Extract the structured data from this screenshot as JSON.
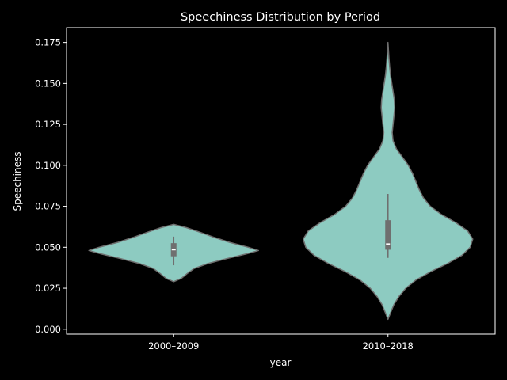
{
  "chart_data": {
    "type": "violin",
    "title": "Speechiness Distribution by Period",
    "xlabel": "year",
    "ylabel": "Speechiness",
    "ylim": [
      -0.003,
      0.184
    ],
    "yticks": [
      0.0,
      0.025,
      0.05,
      0.075,
      0.1,
      0.125,
      0.15,
      0.175
    ],
    "ytick_labels": [
      "0.000",
      "0.025",
      "0.050",
      "0.075",
      "0.100",
      "0.125",
      "0.150",
      "0.175"
    ],
    "categories": [
      "2000–2009",
      "2010–2018"
    ],
    "grid": false,
    "colors": {
      "background": "#000000",
      "violin_fill": "#8dcbc1",
      "violin_edge": "#6f6f6f",
      "box": "#6f6f6f",
      "median": "#ffffff",
      "text": "#ffffff"
    },
    "violins": [
      {
        "category": "2000–2009",
        "box": {
          "q1": 0.0445,
          "median": 0.0485,
          "q3": 0.0525,
          "whisker_low": 0.039,
          "whisker_high": 0.0565
        },
        "density": [
          [
            0.029,
            0.0
          ],
          [
            0.031,
            0.09
          ],
          [
            0.034,
            0.16
          ],
          [
            0.037,
            0.24
          ],
          [
            0.04,
            0.4
          ],
          [
            0.043,
            0.62
          ],
          [
            0.046,
            0.86
          ],
          [
            0.048,
            1.0
          ],
          [
            0.05,
            0.88
          ],
          [
            0.053,
            0.66
          ],
          [
            0.056,
            0.48
          ],
          [
            0.059,
            0.32
          ],
          [
            0.062,
            0.15
          ],
          [
            0.064,
            0.0
          ]
        ]
      },
      {
        "category": "2010–2018",
        "box": {
          "q1": 0.0485,
          "median": 0.052,
          "q3": 0.0665,
          "whisker_low": 0.0435,
          "whisker_high": 0.0825
        },
        "density": [
          [
            0.006,
            0.0
          ],
          [
            0.01,
            0.03
          ],
          [
            0.015,
            0.07
          ],
          [
            0.02,
            0.13
          ],
          [
            0.025,
            0.21
          ],
          [
            0.03,
            0.33
          ],
          [
            0.035,
            0.5
          ],
          [
            0.04,
            0.7
          ],
          [
            0.045,
            0.87
          ],
          [
            0.05,
            0.97
          ],
          [
            0.055,
            1.0
          ],
          [
            0.06,
            0.94
          ],
          [
            0.065,
            0.8
          ],
          [
            0.07,
            0.63
          ],
          [
            0.075,
            0.5
          ],
          [
            0.08,
            0.42
          ],
          [
            0.085,
            0.37
          ],
          [
            0.09,
            0.33
          ],
          [
            0.095,
            0.29
          ],
          [
            0.1,
            0.24
          ],
          [
            0.105,
            0.17
          ],
          [
            0.11,
            0.1
          ],
          [
            0.115,
            0.06
          ],
          [
            0.12,
            0.05
          ],
          [
            0.125,
            0.06
          ],
          [
            0.13,
            0.07
          ],
          [
            0.135,
            0.08
          ],
          [
            0.14,
            0.075
          ],
          [
            0.145,
            0.06
          ],
          [
            0.15,
            0.045
          ],
          [
            0.155,
            0.03
          ],
          [
            0.16,
            0.02
          ],
          [
            0.165,
            0.012
          ],
          [
            0.17,
            0.006
          ],
          [
            0.175,
            0.0
          ]
        ]
      }
    ]
  }
}
